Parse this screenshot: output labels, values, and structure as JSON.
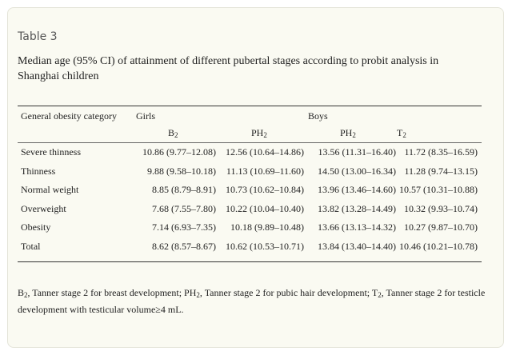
{
  "table": {
    "label": "Table 3",
    "caption": "Median age (95% CI) of attainment of different pubertal stages according to probit analysis in Shanghai children",
    "header": {
      "category": "General obesity category",
      "girls": "Girls",
      "boys": "Boys",
      "cols": [
        {
          "base": "B",
          "sub": "2"
        },
        {
          "base": "PH",
          "sub": "2"
        },
        {
          "base": "PH",
          "sub": "2"
        },
        {
          "base": "T",
          "sub": "2"
        }
      ]
    },
    "rows": [
      {
        "category": "Severe thinness",
        "values": [
          "10.86 (9.77–12.08)",
          "12.56 (10.64–14.86)",
          "13.56 (11.31–16.40)",
          "11.72 (8.35–16.59)"
        ]
      },
      {
        "category": "Thinness",
        "values": [
          "9.88 (9.58–10.18)",
          "11.13 (10.69–11.60)",
          "14.50 (13.00–16.34)",
          "11.28 (9.74–13.15)"
        ]
      },
      {
        "category": "Normal weight",
        "values": [
          "8.85 (8.79–8.91)",
          "10.73 (10.62–10.84)",
          "13.96 (13.46–14.60)",
          "10.57 (10.31–10.88)"
        ]
      },
      {
        "category": "Overweight",
        "values": [
          "7.68 (7.55–7.80)",
          "10.22 (10.04–10.40)",
          "13.82 (13.28–14.49)",
          "10.32 (9.93–10.74)"
        ]
      },
      {
        "category": "Obesity",
        "values": [
          "7.14 (6.93–7.35)",
          "10.18 (9.89–10.48)",
          "13.66 (13.13–14.32)",
          "10.27 (9.87–10.70)"
        ]
      },
      {
        "category": "Total",
        "values": [
          "8.62 (8.57–8.67)",
          "10.62 (10.53–10.71)",
          "13.84 (13.40–14.40)",
          "10.46 (10.21–10.78)"
        ]
      }
    ],
    "footnote": {
      "p1": "B",
      "s1": "2",
      "p2": ", Tanner stage 2 for breast development; PH",
      "s2": "2",
      "p3": ", Tanner stage 2 for pubic hair development; T",
      "s3": "2",
      "p4": ", Tanner stage 2 for testicle development with testicular volume≥4 mL."
    }
  }
}
